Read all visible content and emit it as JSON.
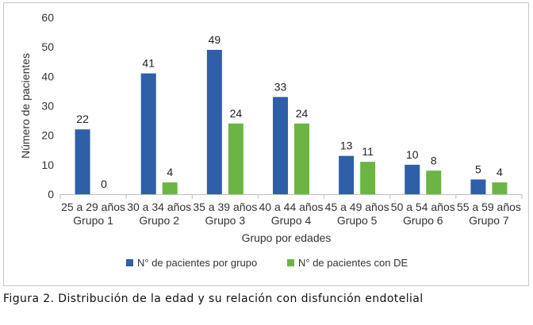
{
  "chart_data": {
    "type": "bar",
    "categories": [
      [
        "25 a 29 años",
        "Grupo 1"
      ],
      [
        "30 a 34 años",
        "Grupo 2"
      ],
      [
        "35 a 39 años",
        "Grupo 3"
      ],
      [
        "40 a 44 años",
        "Grupo 4"
      ],
      [
        "45 a 49 años",
        "Grupo 5"
      ],
      [
        "50 a 54 años",
        "Grupo 6"
      ],
      [
        "55 a 59 años",
        "Grupo 7"
      ]
    ],
    "series": [
      {
        "name": "N° de pacientes por grupo",
        "color": "#2E5FA8",
        "values": [
          22,
          41,
          49,
          33,
          13,
          10,
          5
        ]
      },
      {
        "name": "N° de pacientes con DE",
        "color": "#6CB544",
        "values": [
          0,
          4,
          24,
          24,
          11,
          8,
          4
        ]
      }
    ],
    "xlabel": "Grupo por edades",
    "ylabel": "Número de pacientes",
    "ylim": [
      0,
      60
    ],
    "yticks": [
      0,
      10,
      20,
      30,
      40,
      50,
      60
    ],
    "grid": false,
    "legend": "bottom"
  },
  "caption": "Figura 2. Distribución de la edad y su relación con disfunción endotelial"
}
